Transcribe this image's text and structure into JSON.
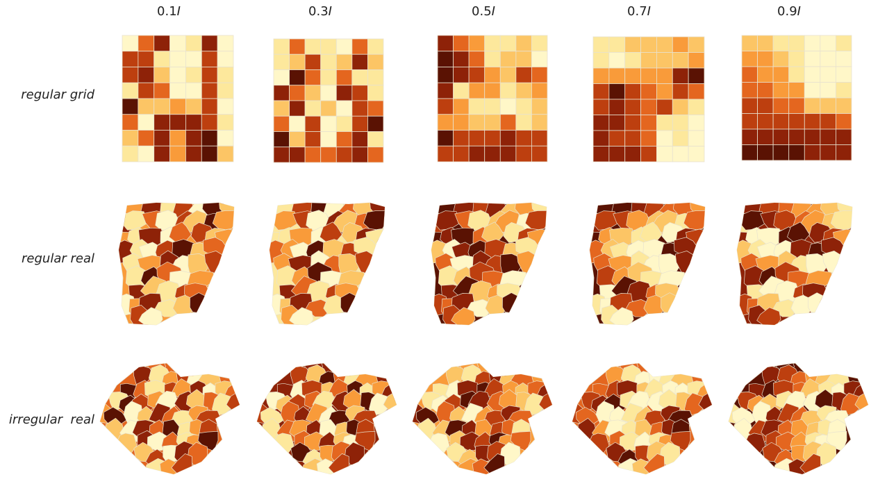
{
  "columns": [
    {
      "num": "0.1",
      "sym": "I"
    },
    {
      "num": "0.3",
      "sym": "I"
    },
    {
      "num": "0.5",
      "sym": "I"
    },
    {
      "num": "0.7",
      "sym": "I"
    },
    {
      "num": "0.9",
      "sym": "I"
    }
  ],
  "rows": [
    "regular grid",
    "regular real",
    "irregular  real"
  ],
  "colors": {
    "scale": [
      "#fff7c8",
      "#fde89c",
      "#fcc565",
      "#f99b3a",
      "#e4661f",
      "#bd3f0f",
      "#8e2208",
      "#5a1203"
    ],
    "cell_stroke": "#e8e2cf"
  },
  "grids": [
    [
      [
        0,
        4,
        6,
        0,
        1,
        6,
        0
      ],
      [
        5,
        5,
        1,
        0,
        0,
        5,
        0
      ],
      [
        5,
        6,
        2,
        0,
        1,
        5,
        1
      ],
      [
        1,
        5,
        4,
        0,
        0,
        5,
        1
      ],
      [
        7,
        2,
        2,
        3,
        2,
        5,
        0
      ],
      [
        4,
        0,
        6,
        6,
        6,
        5,
        1
      ],
      [
        2,
        4,
        6,
        3,
        6,
        7,
        0
      ],
      [
        1,
        0,
        6,
        3,
        6,
        7,
        2
      ]
    ],
    [
      [
        1,
        4,
        1,
        1,
        0,
        4,
        1
      ],
      [
        1,
        2,
        5,
        1,
        2,
        6,
        2
      ],
      [
        0,
        7,
        4,
        1,
        4,
        1,
        1
      ],
      [
        6,
        4,
        2,
        0,
        6,
        5,
        1
      ],
      [
        2,
        6,
        1,
        2,
        0,
        5,
        4
      ],
      [
        4,
        0,
        5,
        0,
        1,
        5,
        7
      ],
      [
        7,
        2,
        5,
        0,
        4,
        6,
        1
      ],
      [
        6,
        6,
        4,
        4,
        5,
        6,
        4
      ]
    ],
    [
      [
        6,
        4,
        3,
        1,
        1,
        2,
        1
      ],
      [
        7,
        6,
        4,
        1,
        2,
        2,
        0
      ],
      [
        7,
        6,
        5,
        3,
        2,
        5,
        4
      ],
      [
        6,
        1,
        3,
        3,
        1,
        2,
        3
      ],
      [
        5,
        3,
        1,
        1,
        0,
        1,
        2
      ],
      [
        3,
        3,
        2,
        2,
        4,
        1,
        2
      ],
      [
        7,
        5,
        5,
        5,
        6,
        5,
        5
      ],
      [
        5,
        5,
        6,
        6,
        6,
        5,
        5
      ]
    ],
    [
      [
        1,
        1,
        2,
        2,
        2,
        3,
        2
      ],
      [
        1,
        0,
        1,
        2,
        2,
        2,
        3
      ],
      [
        3,
        3,
        3,
        3,
        3,
        6,
        7
      ],
      [
        5,
        7,
        5,
        4,
        3,
        5,
        4
      ],
      [
        5,
        6,
        5,
        4,
        5,
        2,
        1
      ],
      [
        6,
        6,
        5,
        4,
        1,
        1,
        0
      ],
      [
        6,
        5,
        5,
        4,
        0,
        1,
        0
      ],
      [
        6,
        6,
        6,
        5,
        0,
        0,
        0
      ]
    ],
    [
      [
        2,
        2,
        1,
        1,
        0,
        0,
        1
      ],
      [
        3,
        3,
        2,
        1,
        0,
        0,
        0
      ],
      [
        4,
        3,
        3,
        1,
        0,
        0,
        0
      ],
      [
        4,
        4,
        3,
        3,
        0,
        0,
        1
      ],
      [
        5,
        5,
        4,
        4,
        2,
        2,
        2
      ],
      [
        5,
        5,
        5,
        5,
        5,
        5,
        4
      ],
      [
        6,
        6,
        6,
        6,
        6,
        6,
        6
      ],
      [
        7,
        7,
        7,
        7,
        6,
        6,
        6
      ]
    ]
  ],
  "region_levels": {
    "regular_real": [
      [
        3,
        6,
        1,
        5,
        0,
        7,
        2,
        6,
        1,
        4,
        0,
        5,
        2,
        7,
        3,
        1,
        6,
        0,
        4,
        5,
        2,
        3,
        6,
        1,
        0,
        5,
        7,
        2,
        4,
        1,
        3,
        6,
        0,
        2,
        5,
        1,
        7,
        4,
        0,
        3,
        6,
        2,
        1,
        5,
        4,
        0,
        3,
        6,
        1,
        2,
        7,
        5,
        0,
        4,
        2,
        1,
        3,
        6
      ],
      [
        1,
        5,
        7,
        0,
        4,
        2,
        6,
        1,
        3,
        5,
        0,
        6,
        2,
        4,
        7,
        1,
        3,
        0,
        5,
        2,
        6,
        1,
        4,
        3,
        0,
        7,
        2,
        5,
        1,
        3,
        6,
        0,
        4,
        2,
        5,
        1,
        3,
        7,
        0,
        2,
        6,
        4,
        1,
        5,
        3,
        0,
        2,
        6,
        4,
        1,
        7,
        3,
        0,
        5,
        2,
        4,
        1,
        6
      ],
      [
        7,
        6,
        5,
        6,
        2,
        3,
        1,
        5,
        6,
        4,
        1,
        2,
        3,
        0,
        5,
        6,
        7,
        4,
        2,
        1,
        5,
        3,
        2,
        0,
        6,
        7,
        5,
        2,
        1,
        4,
        0,
        6,
        5,
        7,
        3,
        1,
        2,
        5,
        4,
        0,
        6,
        7,
        2,
        3,
        1,
        5,
        4,
        6,
        0,
        2,
        7,
        5,
        3,
        1,
        6,
        4,
        2,
        0
      ],
      [
        7,
        7,
        6,
        5,
        4,
        4,
        3,
        6,
        5,
        5,
        3,
        2,
        2,
        1,
        4,
        3,
        2,
        1,
        1,
        0,
        6,
        5,
        4,
        2,
        1,
        0,
        0,
        7,
        6,
        4,
        3,
        1,
        0,
        0,
        6,
        5,
        3,
        2,
        1,
        0,
        0,
        7,
        6,
        4,
        2,
        1,
        0,
        5,
        4,
        3,
        2,
        1,
        0,
        6,
        5,
        2,
        1,
        0
      ],
      [
        6,
        5,
        4,
        3,
        3,
        2,
        1,
        1,
        7,
        6,
        5,
        4,
        3,
        2,
        1,
        0,
        0,
        7,
        7,
        6,
        5,
        3,
        2,
        1,
        0,
        0,
        6,
        7,
        6,
        4,
        3,
        2,
        1,
        0,
        0,
        6,
        7,
        5,
        4,
        3,
        1,
        0,
        0,
        5,
        6,
        5,
        4,
        2,
        1,
        0,
        0,
        6,
        5,
        4,
        3,
        2,
        1,
        0
      ]
    ],
    "irregular_real": [
      [
        4,
        6,
        1,
        3,
        5,
        0,
        2,
        7,
        4,
        1,
        5,
        3,
        6,
        0,
        2,
        4,
        1,
        7,
        5,
        3,
        0,
        6,
        2,
        4,
        1,
        5,
        3,
        7,
        0,
        2,
        6,
        4,
        1,
        3,
        5,
        2,
        0,
        6,
        4,
        7,
        1,
        3,
        5,
        2,
        6,
        0,
        4,
        1,
        3,
        7,
        2,
        5,
        0,
        6,
        4,
        1,
        3,
        5,
        2,
        6,
        0,
        4
      ],
      [
        6,
        5,
        2,
        7,
        4,
        1,
        3,
        6,
        0,
        5,
        2,
        4,
        7,
        1,
        3,
        6,
        0,
        2,
        5,
        4,
        1,
        6,
        3,
        7,
        0,
        2,
        5,
        1,
        4,
        6,
        3,
        0,
        7,
        2,
        5,
        1,
        4,
        3,
        6,
        0,
        2,
        7,
        5,
        1,
        4,
        3,
        6,
        2,
        0,
        5,
        7,
        1,
        3,
        4,
        6,
        2,
        0,
        5,
        1,
        7,
        3,
        4
      ],
      [
        3,
        2,
        1,
        5,
        6,
        2,
        4,
        1,
        0,
        6,
        7,
        5,
        3,
        2,
        4,
        6,
        1,
        0,
        5,
        7,
        6,
        4,
        3,
        2,
        1,
        5,
        6,
        7,
        4,
        2,
        0,
        3,
        5,
        6,
        4,
        1,
        2,
        7,
        6,
        3,
        5,
        4,
        1,
        0,
        2,
        6,
        5,
        7,
        3,
        4,
        1,
        2,
        6,
        5,
        0,
        3,
        4,
        7,
        2,
        1,
        5,
        6
      ],
      [
        4,
        3,
        1,
        0,
        0,
        1,
        2,
        4,
        5,
        6,
        2,
        1,
        0,
        0,
        1,
        3,
        5,
        6,
        7,
        1,
        0,
        0,
        1,
        2,
        4,
        6,
        5,
        4,
        0,
        0,
        1,
        2,
        5,
        6,
        7,
        6,
        3,
        0,
        1,
        2,
        4,
        6,
        7,
        5,
        4,
        1,
        0,
        1,
        3,
        5,
        6,
        7,
        5,
        2,
        1,
        0,
        2,
        4,
        6,
        5,
        3,
        4
      ],
      [
        7,
        6,
        5,
        4,
        3,
        2,
        1,
        6,
        7,
        5,
        4,
        2,
        1,
        0,
        6,
        6,
        5,
        3,
        2,
        1,
        0,
        0,
        7,
        6,
        4,
        3,
        1,
        0,
        0,
        6,
        5,
        4,
        2,
        1,
        0,
        0,
        5,
        6,
        4,
        3,
        2,
        1,
        0,
        6,
        5,
        4,
        3,
        1,
        0,
        0,
        5,
        4,
        3,
        2,
        1,
        0,
        6,
        5,
        3,
        2,
        1,
        0
      ]
    ]
  }
}
